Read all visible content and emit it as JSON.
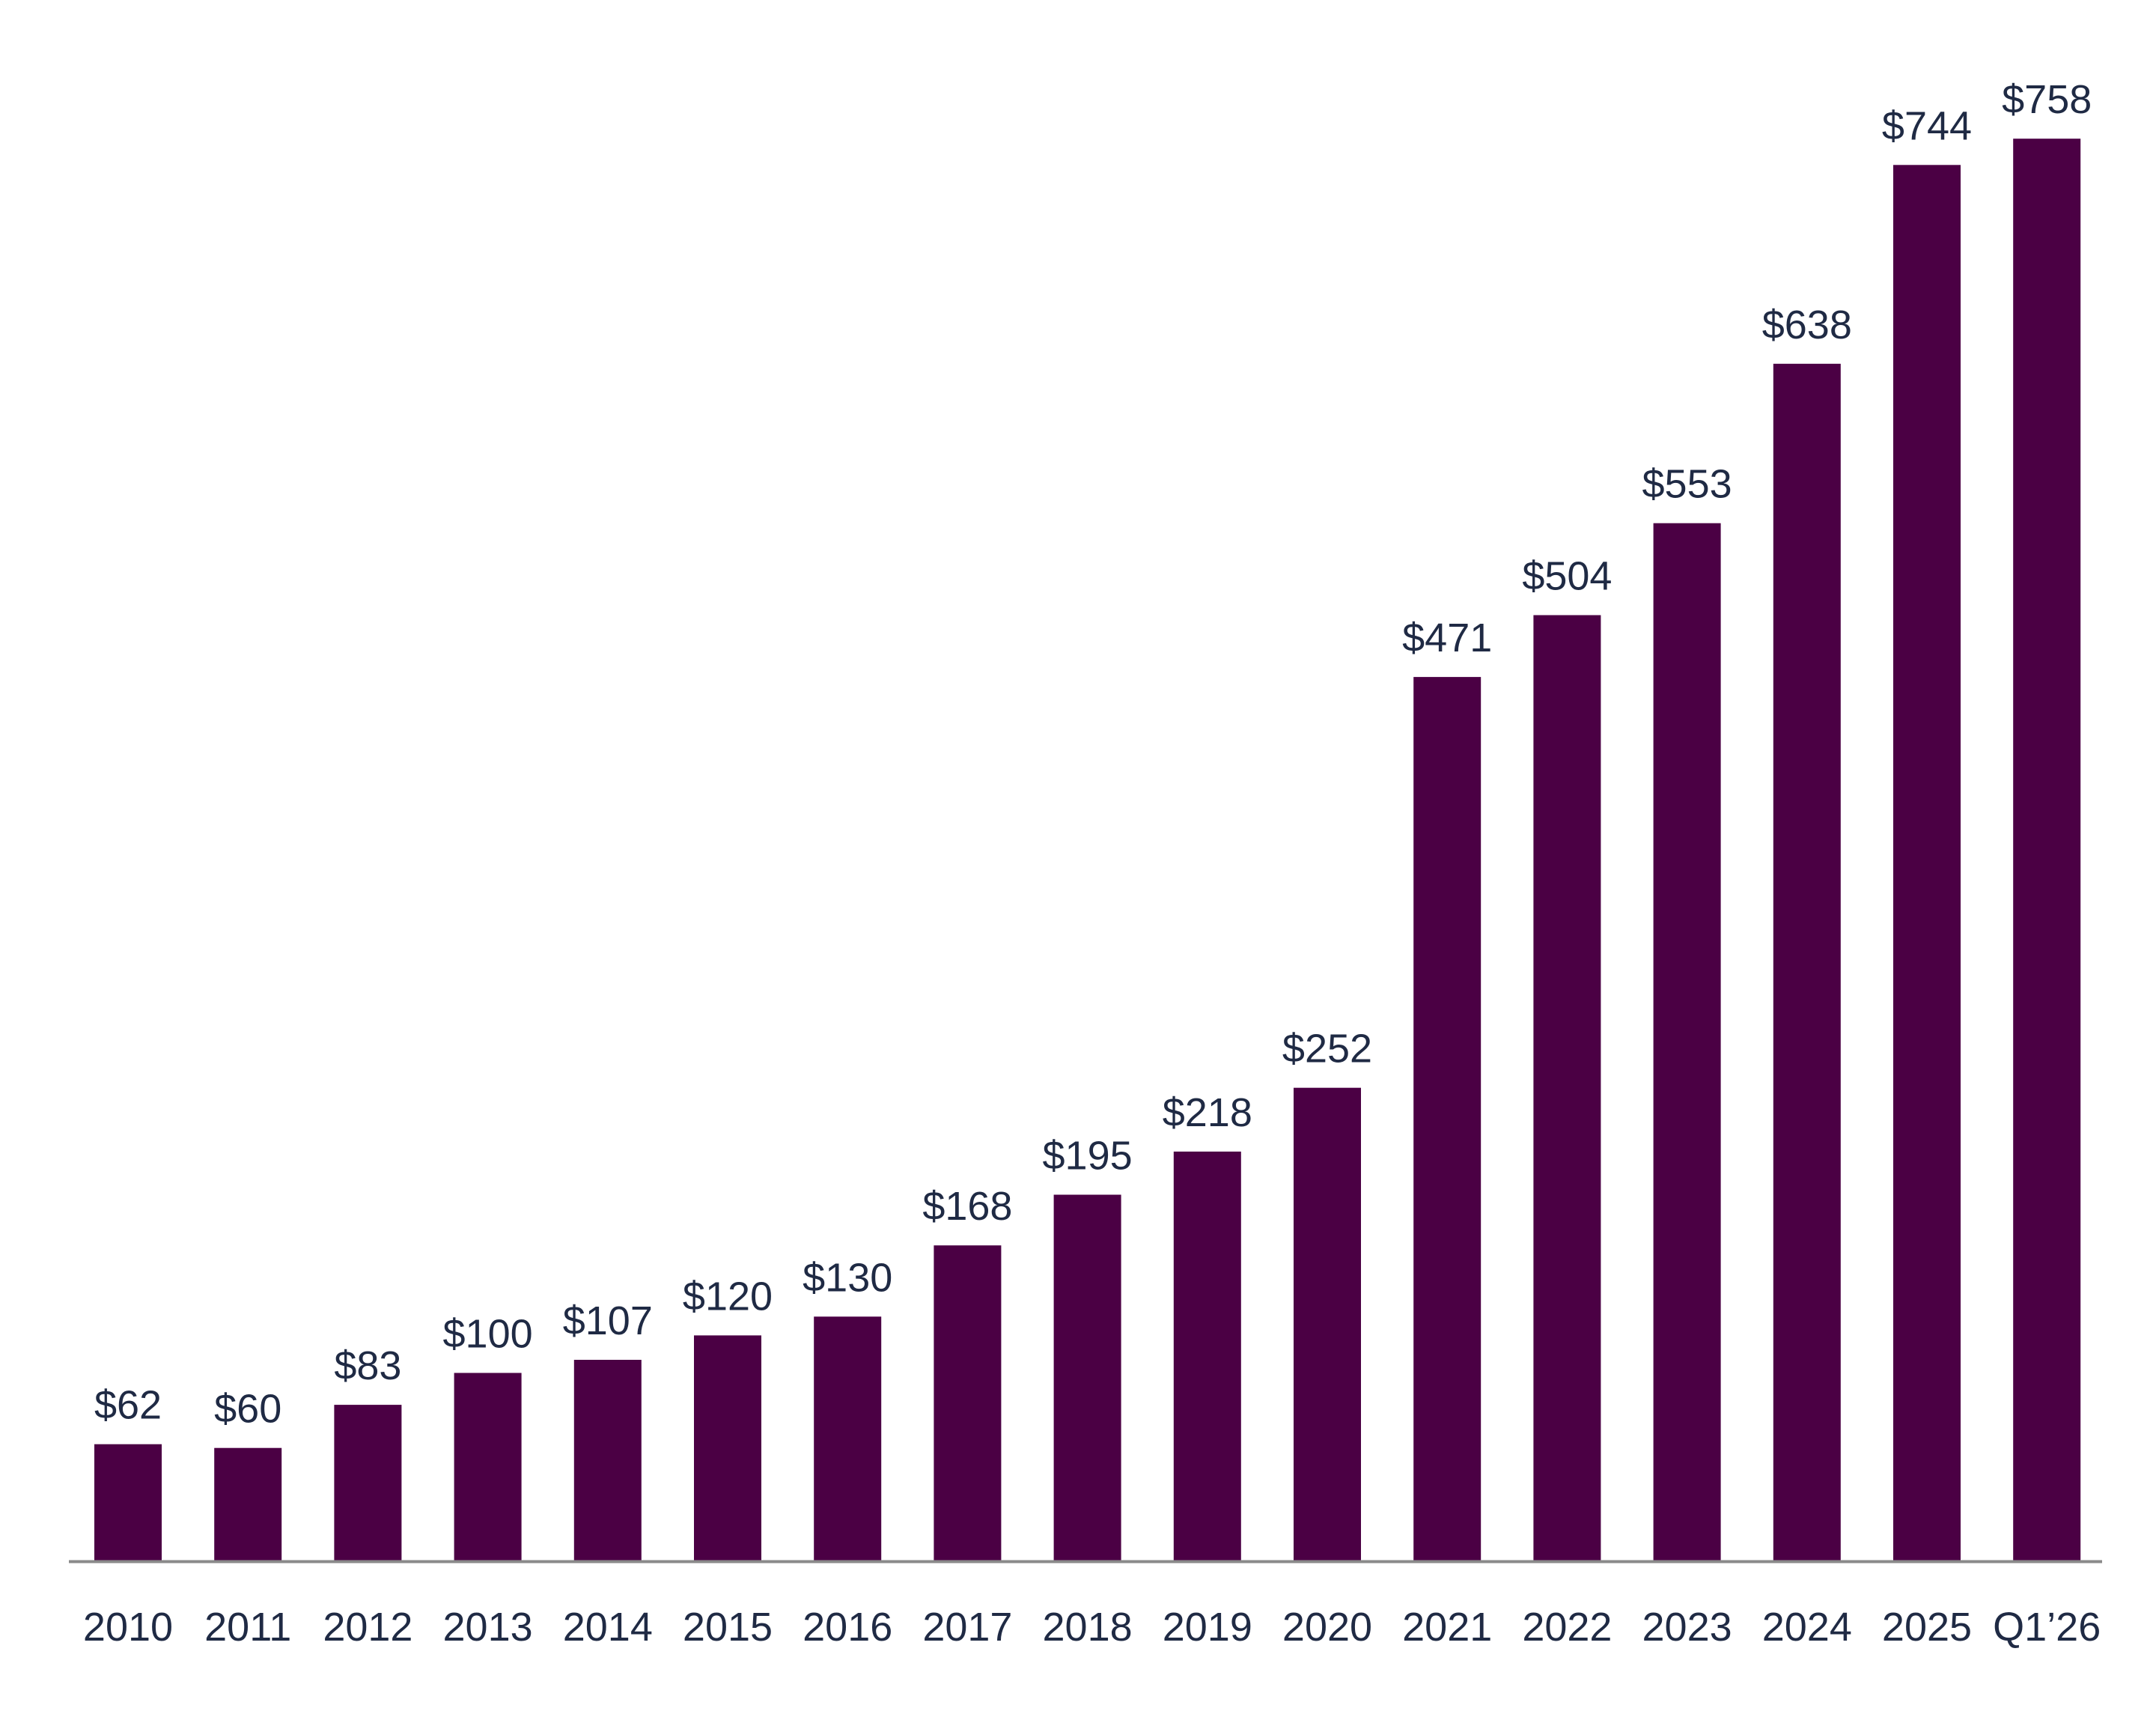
{
  "chart_data": {
    "type": "bar",
    "title": "",
    "xlabel": "",
    "ylabel": "",
    "categories": [
      "2010",
      "2011",
      "2012",
      "2013",
      "2014",
      "2015",
      "2016",
      "2017",
      "2018",
      "2019",
      "2020",
      "2021",
      "2022",
      "2023",
      "2024",
      "2025",
      "Q1’26"
    ],
    "values": [
      62,
      60,
      83,
      100,
      107,
      120,
      130,
      168,
      195,
      218,
      252,
      471,
      504,
      553,
      638,
      744,
      758
    ],
    "value_labels": [
      "$62",
      "$60",
      "$83",
      "$100",
      "$107",
      "$120",
      "$130",
      "$168",
      "$195",
      "$218",
      "$252",
      "$471",
      "$504",
      "$553",
      "$638",
      "$744",
      "$758"
    ],
    "ylim": [
      0,
      800
    ],
    "grid": false,
    "legend": "none",
    "colors": {
      "bar": "#4b0044",
      "axis": "#8a8a8a",
      "text": "#1f2a44"
    }
  }
}
